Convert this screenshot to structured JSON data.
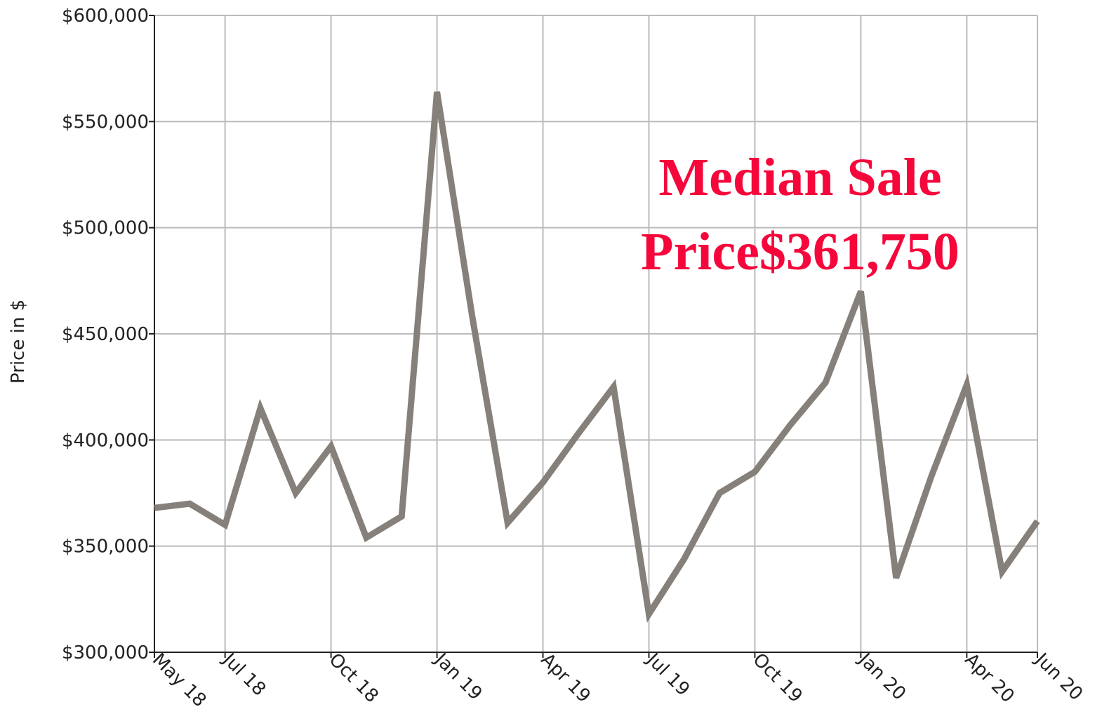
{
  "chart_data": {
    "type": "line",
    "y_label": "Price in $",
    "annotation": [
      "Median Sale",
      "Price$361,750"
    ],
    "categories": [
      "May 18",
      null,
      "Jul 18",
      null,
      null,
      "Oct 18",
      null,
      null,
      "Jan 19",
      null,
      null,
      "Apr 19",
      null,
      null,
      "Jul 19",
      null,
      null,
      "Oct 19",
      null,
      null,
      "Jan 20",
      null,
      null,
      "Apr 20",
      null,
      "Jun 20"
    ],
    "series": [
      {
        "name": "Median Sale Price",
        "color": "#858079",
        "values": [
          368000,
          370000,
          360000,
          415000,
          375000,
          397000,
          354000,
          364000,
          564000,
          458000,
          361000,
          380000,
          403000,
          425000,
          318000,
          344000,
          375000,
          385000,
          407000,
          427000,
          470000,
          335000,
          383000,
          426000,
          338000,
          361750
        ]
      }
    ],
    "ylim": [
      300000,
      600000
    ],
    "yticks": [
      {
        "value": 300000,
        "label": "$300,000"
      },
      {
        "value": 350000,
        "label": "$350,000"
      },
      {
        "value": 400000,
        "label": "$400,000"
      },
      {
        "value": 450000,
        "label": "$450,000"
      },
      {
        "value": 500000,
        "label": "$500,000"
      },
      {
        "value": 550000,
        "label": "$550,000"
      },
      {
        "value": 600000,
        "label": "$600,000"
      }
    ],
    "grid": true
  }
}
